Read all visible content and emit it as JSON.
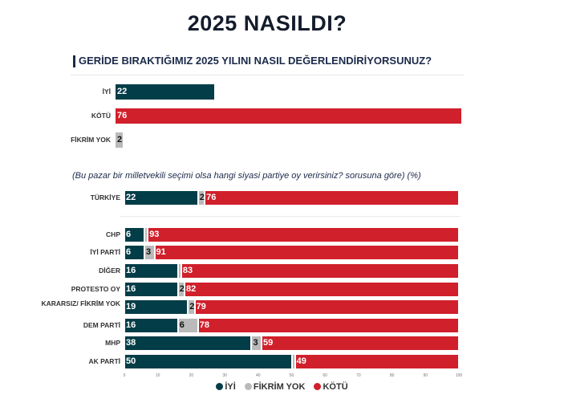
{
  "title": "2025 NASILDI?",
  "question": "GERİDE BIRAKTIĞIMIZ 2025 YILINI NASIL DEĞERLENDİRİYORSUNUZ?",
  "subtitle": "(Bu pazar bir milletvekili seçimi olsa hangi siyasi partiye oy verirsiniz? sorusuna göre) (%)",
  "colors": {
    "iyi": "#033d47",
    "fikrim_yok": "#bababa",
    "kotu": "#d0202b"
  },
  "chart_data": [
    {
      "type": "bar",
      "title": "GERİDE BIRAKTIĞIMIZ 2025 YILINI NASIL DEĞERLENDİRİYORSUNUZ?",
      "categories": [
        "İYİ",
        "KÖTÜ",
        "FİKRİM YOK"
      ],
      "values": [
        22,
        76,
        2
      ],
      "xlim": [
        0,
        76
      ]
    },
    {
      "type": "bar",
      "stacked": true,
      "orientation": "horizontal",
      "title": "(Bu pazar bir milletvekili seçimi olsa hangi siyasi partiye oy verirsiniz? sorusuna göre) (%)",
      "categories": [
        "TÜRKİYE",
        "CHP",
        "İYİ PARTİ",
        "DİĞER",
        "PROTESTO OY",
        "KARARSIZ/ FİKRİM YOK",
        "DEM PARTİ",
        "MHP",
        "AK PARTİ"
      ],
      "series": [
        {
          "name": "İYİ",
          "values": [
            22,
            6,
            6,
            16,
            16,
            19,
            16,
            38,
            50
          ]
        },
        {
          "name": "FİKRİM YOK",
          "values": [
            2,
            1,
            3,
            1,
            2,
            2,
            6,
            3,
            1
          ]
        },
        {
          "name": "KÖTÜ",
          "values": [
            76,
            93,
            91,
            83,
            82,
            79,
            78,
            59,
            49
          ]
        }
      ],
      "xlim": [
        0,
        100
      ],
      "xticks": [
        "0",
        "10",
        "20",
        "30",
        "40",
        "50",
        "60",
        "70",
        "80",
        "90",
        "100"
      ],
      "legend": "bottom"
    }
  ]
}
